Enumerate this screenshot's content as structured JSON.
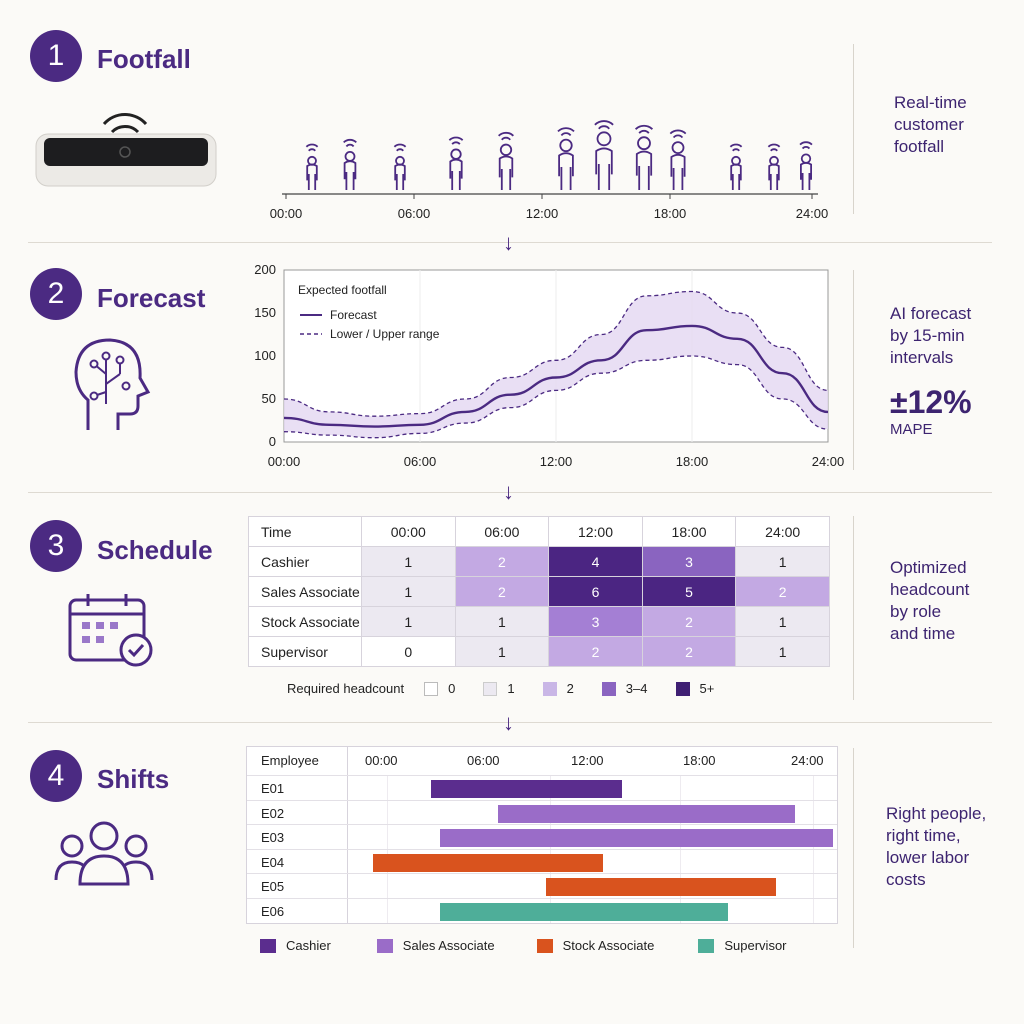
{
  "colors": {
    "accent": "#4b2a82",
    "light": "#c9b6e6",
    "mid": "#9a78c9",
    "cashier": "#5b2d8e",
    "sales": "#9a6cc8",
    "stock": "#d9531e",
    "supervisor": "#4eae99"
  },
  "steps": [
    {
      "num": "1",
      "title": "Footfall",
      "side": [
        "Real-time",
        "customer",
        "footfall"
      ]
    },
    {
      "num": "2",
      "title": "Forecast",
      "side": [
        "AI forecast",
        "by 15-min",
        "intervals"
      ],
      "metric": "±12%",
      "metric_label": "MAPE"
    },
    {
      "num": "3",
      "title": "Schedule",
      "side": [
        "Optimized",
        "headcount",
        "by role",
        "and time"
      ]
    },
    {
      "num": "4",
      "title": "Shifts",
      "side": [
        "Right people,",
        "right time,",
        "lower labor",
        "costs"
      ]
    }
  ],
  "icons": {
    "sensor": "wifi-sensor-icon",
    "head": "ai-head-icon",
    "calendar": "calendar-check-icon",
    "team": "team-icon",
    "arrow": "arrow-down-icon"
  },
  "footfall_axis": [
    "00:00",
    "06:00",
    "12:00",
    "18:00",
    "24:00"
  ],
  "chart_data": {
    "type": "line",
    "title": "Expected footfall",
    "x": [
      "00:00",
      "02:00",
      "04:00",
      "06:00",
      "08:00",
      "10:00",
      "12:00",
      "14:00",
      "16:00",
      "18:00",
      "20:00",
      "22:00",
      "24:00"
    ],
    "x_ticks": [
      "00:00",
      "06:00",
      "12:00",
      "18:00",
      "24:00"
    ],
    "y_ticks": [
      "0",
      "50",
      "100",
      "150",
      "200"
    ],
    "ylim": [
      0,
      200
    ],
    "series": [
      {
        "name": "Forecast",
        "values": [
          28,
          20,
          18,
          20,
          35,
          55,
          75,
          95,
          130,
          135,
          120,
          80,
          35
        ]
      },
      {
        "name": "Lower / Upper range",
        "lower": [
          12,
          8,
          5,
          10,
          22,
          40,
          60,
          80,
          95,
          100,
          90,
          50,
          15
        ],
        "upper": [
          50,
          35,
          30,
          33,
          50,
          75,
          95,
          125,
          170,
          175,
          150,
          110,
          60
        ]
      }
    ]
  },
  "schedule": {
    "header": [
      "Time",
      "00:00",
      "06:00",
      "12:00",
      "18:00",
      "24:00"
    ],
    "rows": [
      {
        "role": "Cashier",
        "values": [
          "1",
          "2",
          "4",
          "3",
          "1"
        ]
      },
      {
        "role": "Sales Associate",
        "values": [
          "1",
          "2",
          "6",
          "5",
          "2"
        ]
      },
      {
        "role": "Stock Associate",
        "values": [
          "1",
          "1",
          "3",
          "2",
          "1"
        ]
      },
      {
        "role": "Supervisor",
        "values": [
          "0",
          "1",
          "2",
          "2",
          "1"
        ]
      }
    ],
    "legend_title": "Required headcount",
    "legend": [
      "0",
      "1",
      "2",
      "3–4",
      "5+"
    ]
  },
  "shifts": {
    "header": [
      "Employee",
      "00:00",
      "06:00",
      "12:00",
      "18:00",
      "24:00"
    ],
    "rows": [
      {
        "emp": "E01",
        "role": "cashier",
        "start": 3,
        "end": 13
      },
      {
        "emp": "E02",
        "role": "sales",
        "start": 6.5,
        "end": 22
      },
      {
        "emp": "E03",
        "role": "sales",
        "start": 3.5,
        "end": 24
      },
      {
        "emp": "E04",
        "role": "stock",
        "start": 0,
        "end": 12
      },
      {
        "emp": "E05",
        "role": "stock",
        "start": 9,
        "end": 21
      },
      {
        "emp": "E06",
        "role": "supervisor",
        "start": 3.5,
        "end": 18.5
      }
    ],
    "legend": [
      "Cashier",
      "Sales Associate",
      "Stock Associate",
      "Supervisor"
    ]
  }
}
